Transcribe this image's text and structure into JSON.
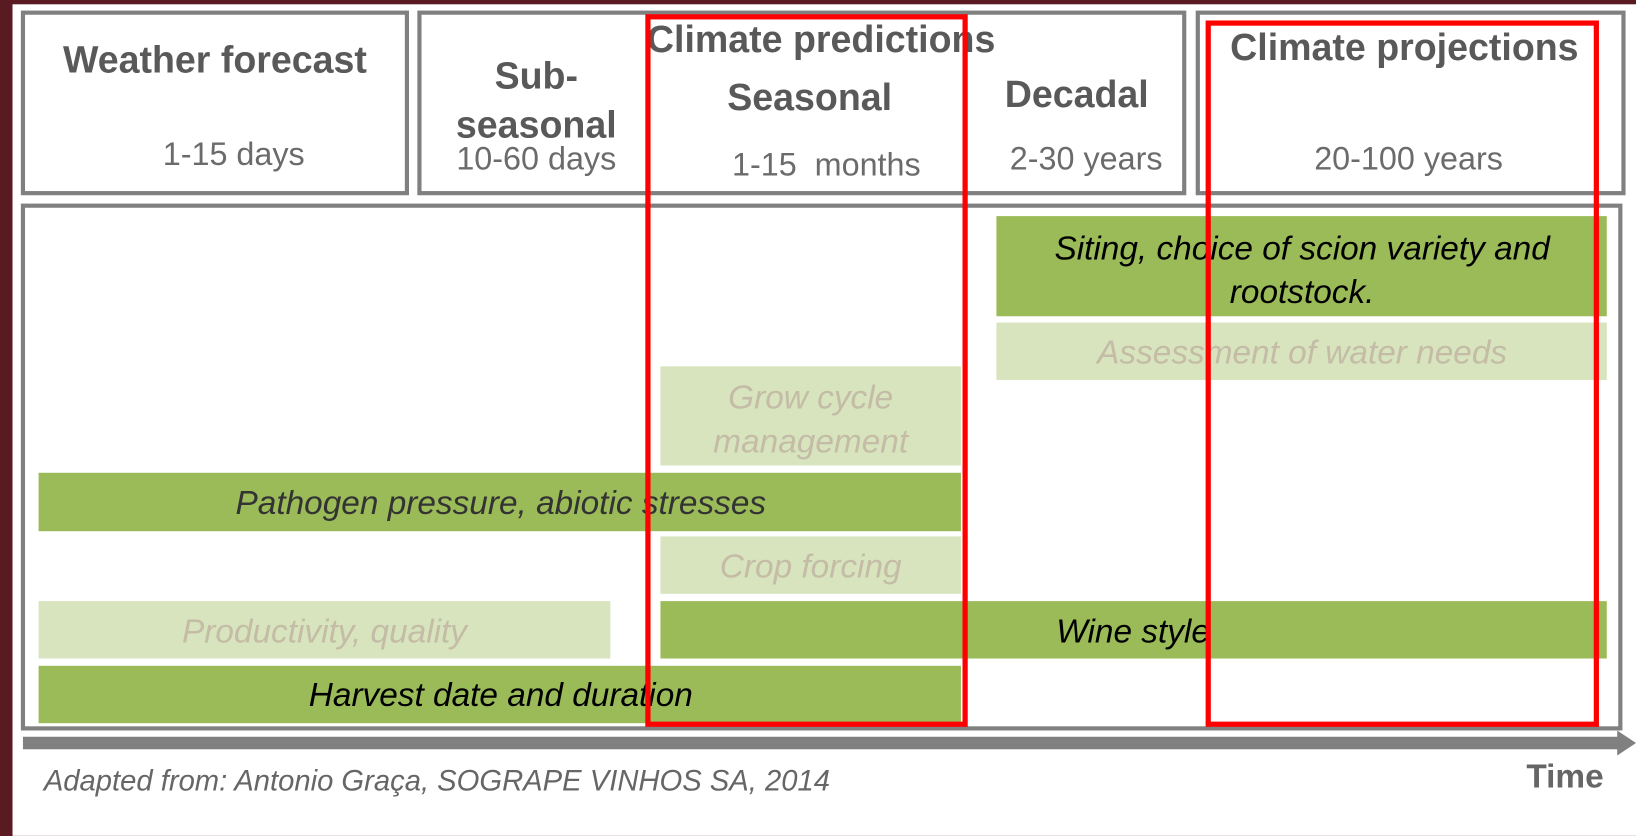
{
  "header": {
    "weather": {
      "title": "Weather forecast",
      "range": "1-15 days"
    },
    "predictions": {
      "title": "Climate predictions",
      "columns": [
        {
          "title": [
            "Sub-",
            "seasonal"
          ],
          "range": "10-60 days"
        },
        {
          "title": [
            "Seasonal"
          ],
          "range": "1-15  months"
        },
        {
          "title": [
            "Decadal"
          ],
          "range": "2-30 years"
        }
      ]
    },
    "projections": {
      "title": "Climate projections",
      "range": "20-100 years"
    }
  },
  "bars": [
    {
      "label": [
        "Siting, choice of scion variety and",
        "rootstock."
      ]
    },
    {
      "label": [
        "Assessment of water needs"
      ]
    },
    {
      "label": [
        "Grow cycle",
        "management"
      ]
    },
    {
      "label": [
        "Pathogen pressure, abiotic stresses"
      ]
    },
    {
      "label": [
        "Crop forcing"
      ]
    },
    {
      "label": [
        "Productivity, quality"
      ]
    },
    {
      "label": [
        "Wine style"
      ]
    },
    {
      "label": [
        "Harvest date and duration"
      ]
    }
  ],
  "footer": {
    "source": "Adapted from: Antonio Graça, SOGRAPE VINHOS SA, 2014",
    "axis": "Time"
  }
}
